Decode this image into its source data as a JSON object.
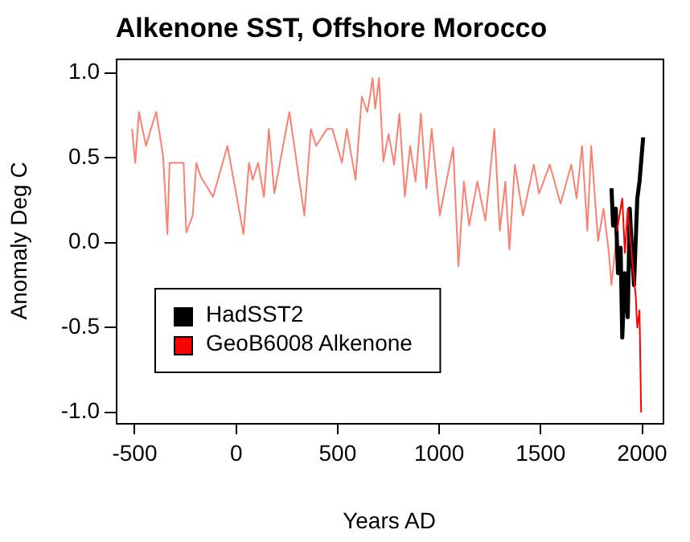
{
  "chart_data": {
    "type": "line",
    "title": "Alkenone SST, Offshore Morocco",
    "xlabel": "Years AD",
    "ylabel": "Anomaly Deg C",
    "xlim": [
      -593,
      2101
    ],
    "xticks": [
      -500,
      0,
      500,
      1000,
      1500,
      2000
    ],
    "ylim": [
      -1.063,
      1.085
    ],
    "yticks": [
      {
        "value": -1,
        "label": "-1.0"
      },
      -0.5,
      {
        "value": 0,
        "label": "0.0"
      },
      0.5,
      {
        "value": 1,
        "label": "1.0"
      }
    ],
    "grid": false,
    "legend": "bottom left",
    "marker": "none",
    "series": [
      {
        "color": "#fa8072",
        "x": [
          -513,
          -497,
          -479,
          -444,
          -420,
          -394,
          -360,
          -339,
          -328,
          -259,
          -246,
          -214,
          -196,
          -175,
          -114,
          -43,
          36,
          63,
          81,
          108,
          137,
          161,
          188,
          262,
          336,
          368,
          394,
          447,
          474,
          521,
          545,
          588,
          619,
          646,
          659,
          672,
          685,
          704,
          725,
          751,
          778,
          804,
          831,
          857,
          884,
          910,
          937,
          963,
          1003,
          1029,
          1069,
          1095,
          1122,
          1148,
          1188,
          1228,
          1272,
          1299,
          1326,
          1346,
          1373,
          1413,
          1466,
          1492,
          1545,
          1598,
          1651,
          1677,
          1704,
          1730,
          1749,
          1783,
          1810,
          1836,
          1849,
          1876
        ],
        "values": [
          0.67,
          0.47,
          0.77,
          0.57,
          0.67,
          0.77,
          0.51,
          0.05,
          0.47,
          0.47,
          0.06,
          0.16,
          0.47,
          0.39,
          0.27,
          0.57,
          0.05,
          0.47,
          0.37,
          0.47,
          0.27,
          0.67,
          0.29,
          0.77,
          0.16,
          0.67,
          0.57,
          0.67,
          0.67,
          0.47,
          0.67,
          0.37,
          0.86,
          0.77,
          0.86,
          0.97,
          0.79,
          0.97,
          0.48,
          0.64,
          0.46,
          0.76,
          0.27,
          0.57,
          0.36,
          0.76,
          0.32,
          0.67,
          0.16,
          0.32,
          0.56,
          -0.14,
          0.36,
          0.1,
          0.36,
          0.13,
          0.67,
          0.07,
          0.36,
          -0.04,
          0.46,
          0.16,
          0.46,
          0.29,
          0.46,
          0.23,
          0.46,
          0.26,
          0.57,
          0.07,
          0.57,
          0.01,
          0.2,
          -0.06,
          -0.25,
          0.07
        ]
      },
      {
        "name": "HadSST2",
        "color": "#000000",
        "x": [
          1849,
          1857,
          1870,
          1881,
          1894,
          1902,
          1915,
          1929,
          1939,
          1950,
          1960,
          1976,
          1987,
          2005
        ],
        "values": [
          0.32,
          0.1,
          0.2,
          -0.18,
          -0.03,
          -0.56,
          -0.18,
          -0.44,
          0.2,
          -0.06,
          -0.25,
          0.26,
          0.36,
          0.62
        ]
      },
      {
        "name": "GeoB6008 Alkenone",
        "color": "#ff0000",
        "x": [
          1876,
          1902,
          1915,
          1929,
          1950,
          1968,
          1976,
          1987,
          1995
        ],
        "values": [
          0.07,
          0.26,
          -0.06,
          0.2,
          -0.09,
          -0.31,
          -0.5,
          -0.4,
          -1.0
        ]
      }
    ]
  }
}
